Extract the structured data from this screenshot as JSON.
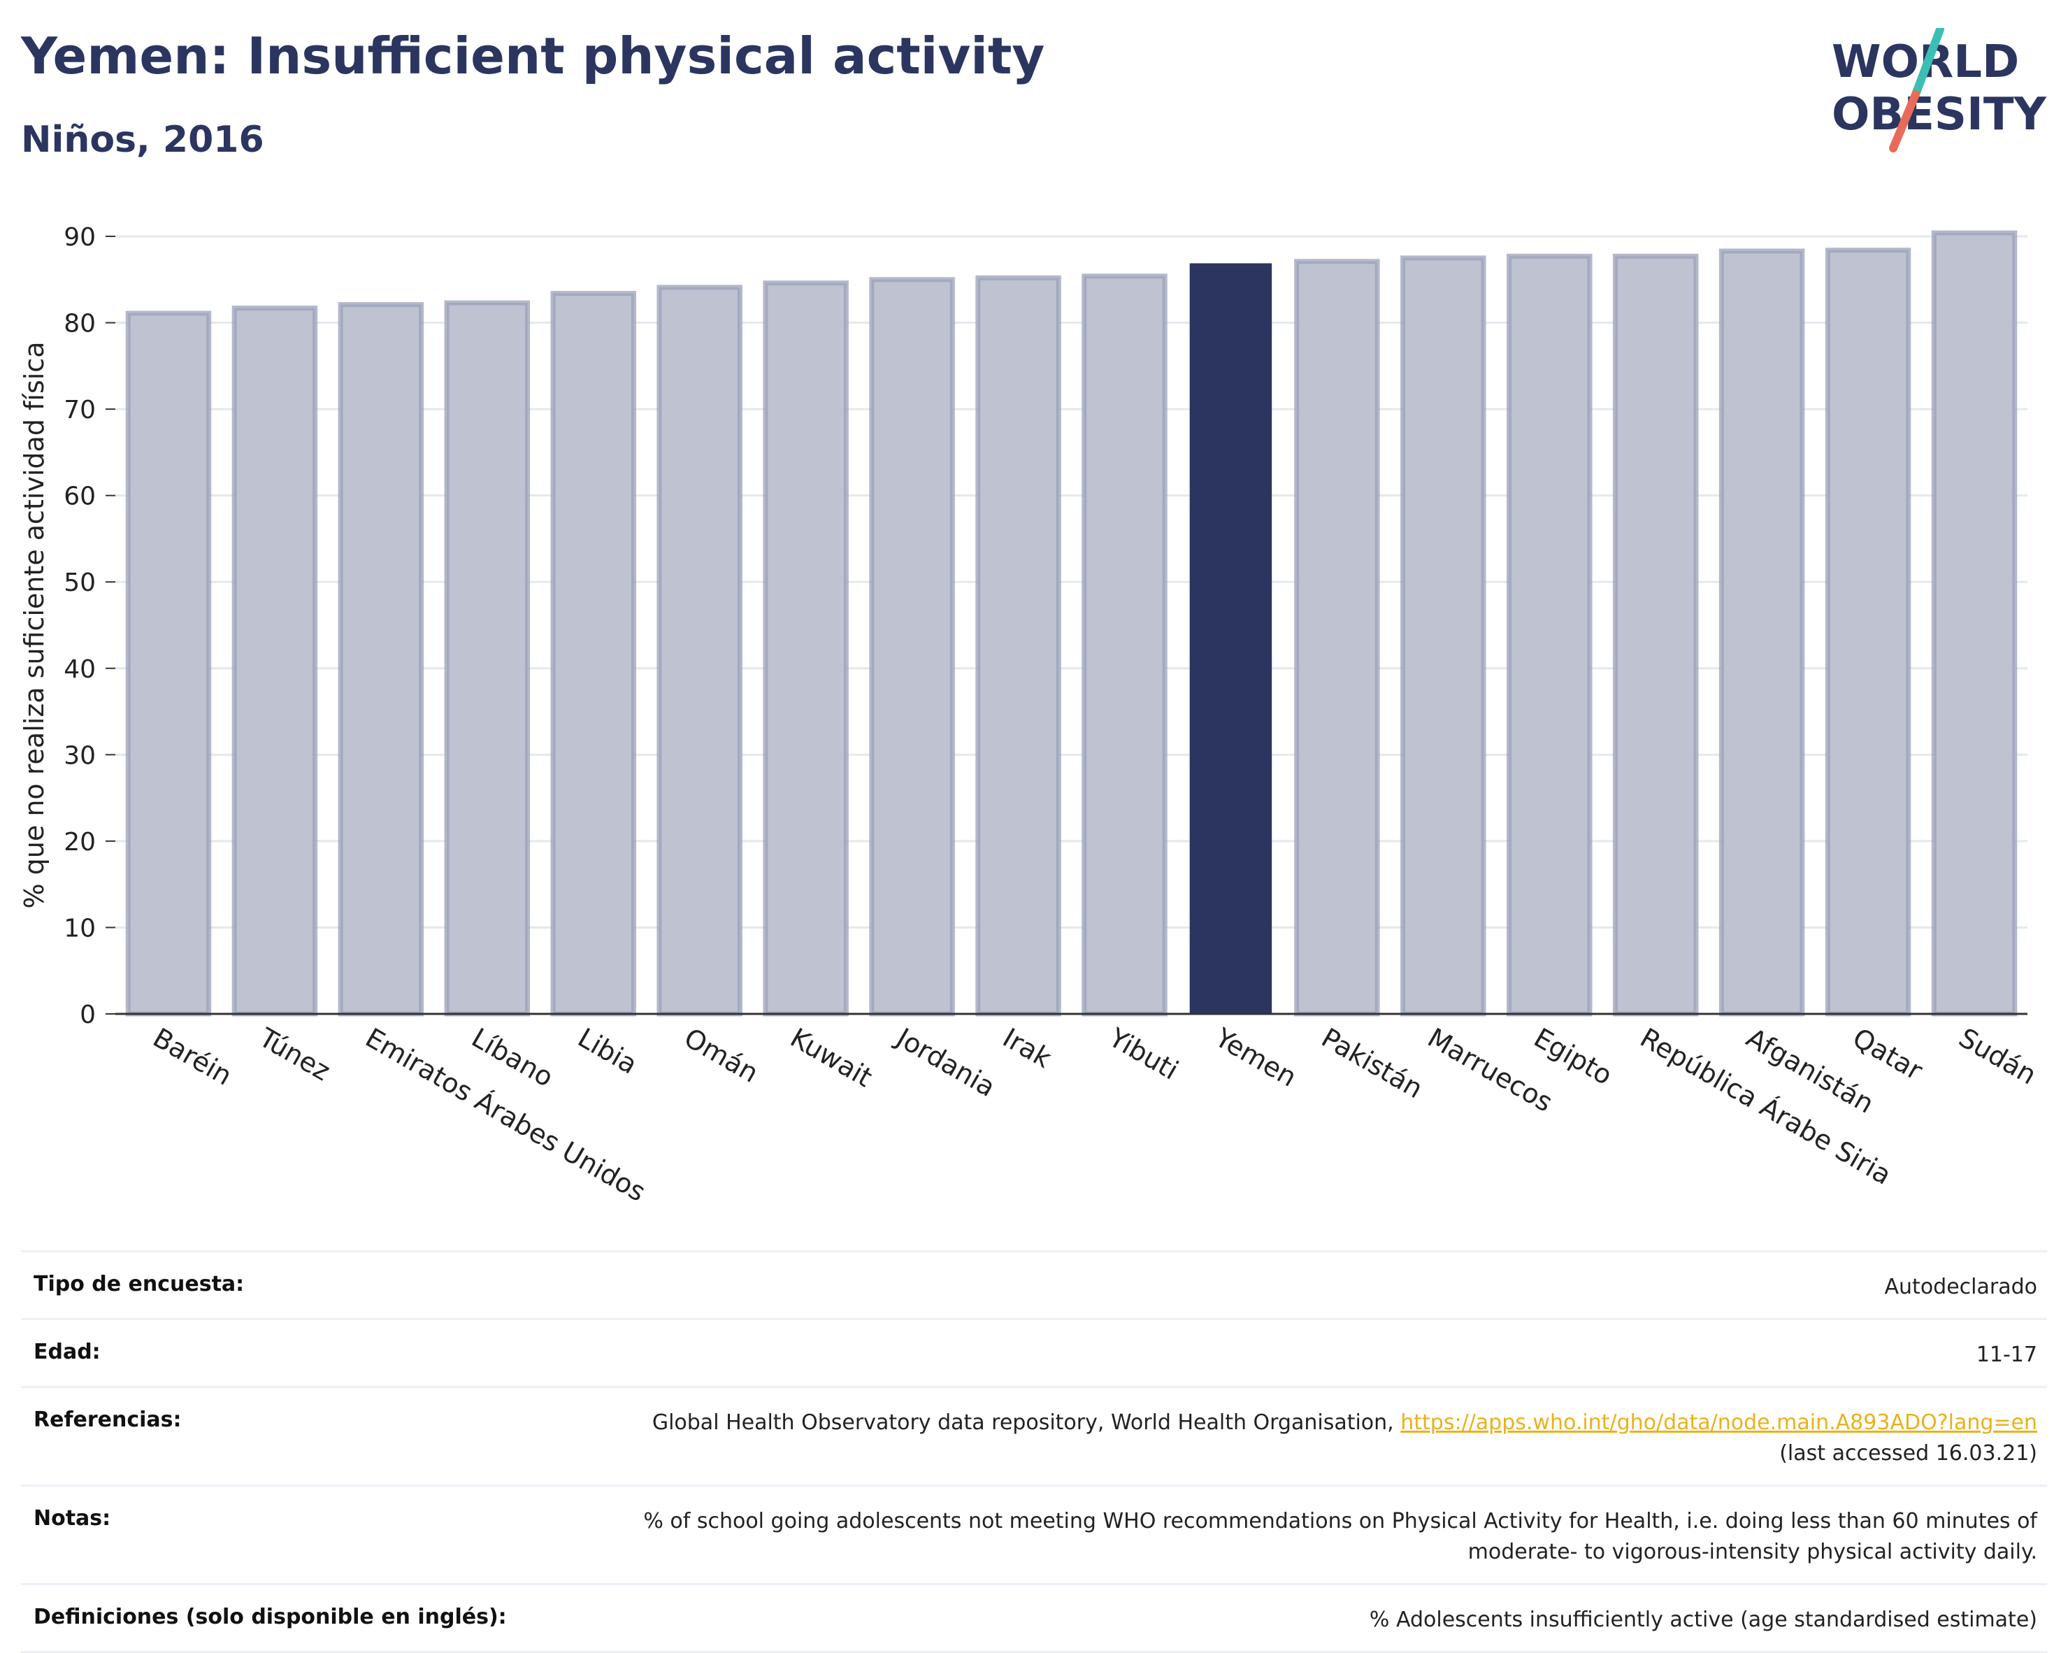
{
  "header": {
    "title": "Yemen: Insufficient physical activity",
    "subtitle": "Niños, 2016"
  },
  "logo": {
    "line1": "WORLD",
    "line2": "OBESITY",
    "text_color": "#2b3560",
    "slash_teal": "#3bbfb5",
    "slash_red": "#e86b5a"
  },
  "colors": {
    "bar_default": "#bfc2d0",
    "bar_default_stroke": "#9aa0b8",
    "bar_highlight": "#2b3560",
    "grid": "#e6e8ee",
    "axis": "#333333"
  },
  "chart_data": {
    "type": "bar",
    "categories": [
      "Baréin",
      "Túnez",
      "Emiratos Árabes Unidos",
      "Líbano",
      "Libia",
      "Omán",
      "Kuwait",
      "Jordania",
      "Irak",
      "Yibuti",
      "Yemen",
      "Pakistán",
      "Marruecos",
      "Egipto",
      "República Árabe Siria",
      "Afganistán",
      "Qatar",
      "Sudán"
    ],
    "values": [
      81.1,
      81.7,
      82.1,
      82.3,
      83.4,
      84.1,
      84.6,
      85.0,
      85.2,
      85.4,
      86.8,
      87.1,
      87.5,
      87.7,
      87.7,
      88.3,
      88.4,
      90.4
    ],
    "highlight": "Yemen",
    "ylabel": "% que no realiza suficiente actividad física",
    "ylim": [
      0,
      90
    ],
    "yticks": [
      0,
      10,
      20,
      30,
      40,
      50,
      60,
      70,
      80,
      90
    ],
    "grid": true
  },
  "info": {
    "rows": [
      {
        "label": "Tipo de encuesta:",
        "value": "Autodeclarado"
      },
      {
        "label": "Edad:",
        "value": "11-17"
      },
      {
        "label": "Referencias:",
        "value": "Global Health Observatory data repository, World Health Organisation,",
        "link": "https://apps.who.int/gho/data/node.main.A893ADO?lang=en",
        "value2": "(last accessed 16.03.21)"
      },
      {
        "label": "Notas:",
        "value": "% of school going adolescents not meeting WHO recommendations on Physical Activity for Health, i.e. doing less than 60 minutes of moderate- to vigorous-intensity physical activity daily."
      },
      {
        "label": "Definiciones (solo disponible en inglés):",
        "value": "% Adolescents insufficiently active (age standardised estimate)"
      }
    ]
  }
}
